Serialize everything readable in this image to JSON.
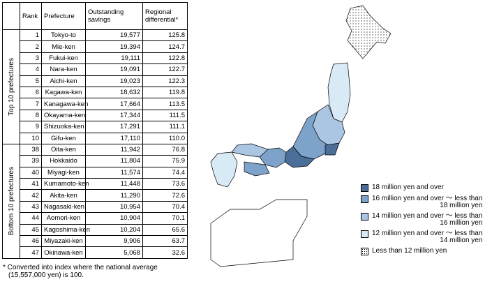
{
  "table": {
    "headers": [
      "Rank",
      "Prefecture",
      "Outstanding savings",
      "Regional differential*"
    ],
    "groups": [
      {
        "label": "Top 10 prefectures",
        "rows": [
          [
            "1",
            "Tokyo-to",
            "19,577",
            "125.8"
          ],
          [
            "2",
            "Mie-ken",
            "19,394",
            "124.7"
          ],
          [
            "3",
            "Fukui-ken",
            "19,111",
            "122.8"
          ],
          [
            "4",
            "Nara-ken",
            "19,091",
            "122.7"
          ],
          [
            "5",
            "Aichi-ken",
            "19,023",
            "122.3"
          ],
          [
            "6",
            "Kagawa-ken",
            "18,632",
            "119.8"
          ],
          [
            "7",
            "Kanagawa-ken",
            "17,664",
            "113.5"
          ],
          [
            "8",
            "Okayama-ken",
            "17,344",
            "111.5"
          ],
          [
            "9",
            "Shizuoka-ken",
            "17,291",
            "111.1"
          ],
          [
            "10",
            "Gifu-ken",
            "17,110",
            "110.0"
          ]
        ]
      },
      {
        "label": "Bottom 10 prefectures",
        "rows": [
          [
            "38",
            "Oita-ken",
            "11,942",
            "76.8"
          ],
          [
            "39",
            "Hokkaido",
            "11,804",
            "75.9"
          ],
          [
            "40",
            "Miyagi-ken",
            "11,574",
            "74.4"
          ],
          [
            "41",
            "Kumamoto-ken",
            "11,448",
            "73.6"
          ],
          [
            "42",
            "Akita-ken",
            "11,290",
            "72.6"
          ],
          [
            "43",
            "Nagasaki-ken",
            "10,954",
            "70.4"
          ],
          [
            "44",
            "Aomori-ken",
            "10,904",
            "70.1"
          ],
          [
            "45",
            "Kagoshima-ken",
            "10,204",
            "65.6"
          ],
          [
            "46",
            "Miyazaki-ken",
            "9,906",
            "63.7"
          ],
          [
            "47",
            "Okinawa-ken",
            "5,068",
            "32.6"
          ]
        ]
      }
    ]
  },
  "footnote": [
    "* Converted into index where the national average",
    "(15,557,000 yen) is 100."
  ],
  "legend": [
    {
      "lines": [
        "18 million yen and over"
      ],
      "color": "#4b6e98"
    },
    {
      "lines": [
        "16 million yen and over ～ less than",
        "18 million yen"
      ],
      "color": "#7ea3cb"
    },
    {
      "lines": [
        "14 million yen and over ～ less than",
        "16 million yen"
      ],
      "color": "#aac6e2"
    },
    {
      "lines": [
        "12 million yen and over ～ less than",
        "14 million yen"
      ],
      "color": "#d8eaf6"
    },
    {
      "lines": [
        "Less than 12 million yen"
      ],
      "color": "#ffffff",
      "dotted": true
    }
  ]
}
